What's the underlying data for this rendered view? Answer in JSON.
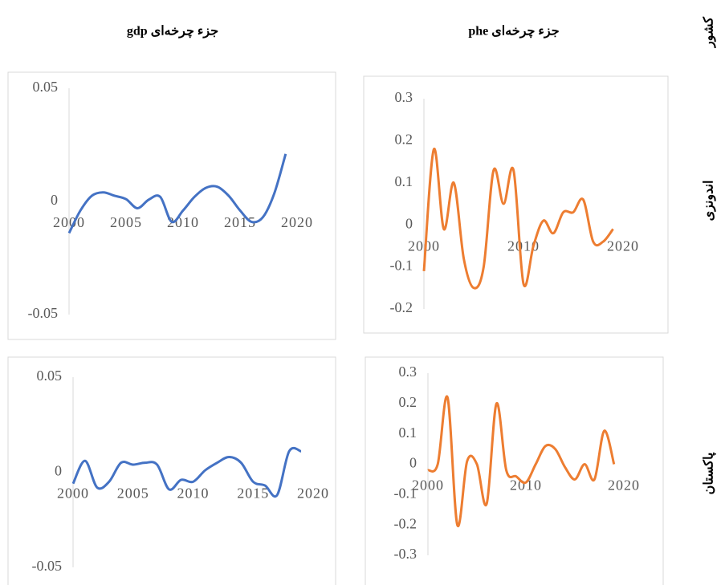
{
  "table": {
    "headers": [
      "کشور",
      "جزء چرخه‌ای phe",
      "جزء چرخه‌ای gdp"
    ],
    "rows": [
      "اندونزی",
      "پاکستان"
    ]
  },
  "chart_data": [
    {
      "type": "line",
      "color": "#4472c4",
      "x": [
        2000,
        2001,
        2002,
        2003,
        2004,
        2005,
        2006,
        2007,
        2008,
        2009,
        2010,
        2011,
        2012,
        2013,
        2014,
        2015,
        2016,
        2017,
        2018,
        2019
      ],
      "values": [
        -0.014,
        -0.004,
        0.0025,
        0.004,
        0.0025,
        0.001,
        -0.003,
        0.0008,
        0.002,
        -0.009,
        -0.004,
        0.002,
        0.006,
        0.0065,
        0.0025,
        -0.004,
        -0.009,
        -0.007,
        0.0035,
        0.021
      ],
      "xlim": [
        2000,
        2020
      ],
      "xticks": [
        2000,
        2005,
        2010,
        2015,
        2020
      ],
      "ylim": [
        -0.05,
        0.05
      ],
      "yticks": [
        -0.05,
        0,
        0.05
      ]
    },
    {
      "type": "line",
      "color": "#ed7d31",
      "x": [
        2000,
        2001,
        2002,
        2003,
        2004,
        2005,
        2006,
        2007,
        2008,
        2009,
        2010,
        2011,
        2012,
        2013,
        2014,
        2015,
        2016,
        2017,
        2018,
        2019
      ],
      "values": [
        -0.11,
        0.18,
        -0.01,
        0.1,
        -0.08,
        -0.15,
        -0.1,
        0.13,
        0.05,
        0.13,
        -0.14,
        -0.05,
        0.01,
        -0.02,
        0.03,
        0.03,
        0.06,
        -0.04,
        -0.04,
        -0.01
      ],
      "xlim": [
        2000,
        2020
      ],
      "xticks": [
        2000,
        2010,
        2020
      ],
      "ylim": [
        -0.2,
        0.3
      ],
      "yticks": [
        -0.2,
        -0.1,
        0,
        0.1,
        0.2,
        0.3
      ]
    },
    {
      "type": "line",
      "color": "#4472c4",
      "x": [
        2000,
        2001,
        2002,
        2003,
        2004,
        2005,
        2006,
        2007,
        2008,
        2009,
        2010,
        2011,
        2012,
        2013,
        2014,
        2015,
        2016,
        2017,
        2018,
        2019
      ],
      "values": [
        -0.006,
        0.006,
        -0.008,
        -0.005,
        0.005,
        0.004,
        0.005,
        0.004,
        -0.009,
        -0.004,
        -0.005,
        0.001,
        0.005,
        0.008,
        0.005,
        -0.005,
        -0.007,
        -0.012,
        0.011,
        0.011
      ],
      "xlim": [
        2000,
        2020
      ],
      "xticks": [
        2000,
        2005,
        2010,
        2015,
        2020
      ],
      "ylim": [
        -0.05,
        0.05
      ],
      "yticks": [
        -0.05,
        0,
        0.05
      ]
    },
    {
      "type": "line",
      "color": "#ed7d31",
      "x": [
        2000,
        2001,
        2002,
        2003,
        2004,
        2005,
        2006,
        2007,
        2008,
        2009,
        2010,
        2011,
        2012,
        2013,
        2014,
        2015,
        2016,
        2017,
        2018,
        2019
      ],
      "values": [
        -0.02,
        0.0,
        0.22,
        -0.2,
        0.01,
        0.0,
        -0.13,
        0.2,
        -0.02,
        -0.04,
        -0.06,
        0.0,
        0.06,
        0.05,
        -0.01,
        -0.05,
        0.0,
        -0.05,
        0.11,
        0.0
      ],
      "xlim": [
        2000,
        2020
      ],
      "xticks": [
        2000,
        2010,
        2020
      ],
      "ylim": [
        -0.3,
        0.3
      ],
      "yticks": [
        -0.3,
        -0.2,
        -0.1,
        0,
        0.1,
        0.2,
        0.3
      ]
    }
  ]
}
